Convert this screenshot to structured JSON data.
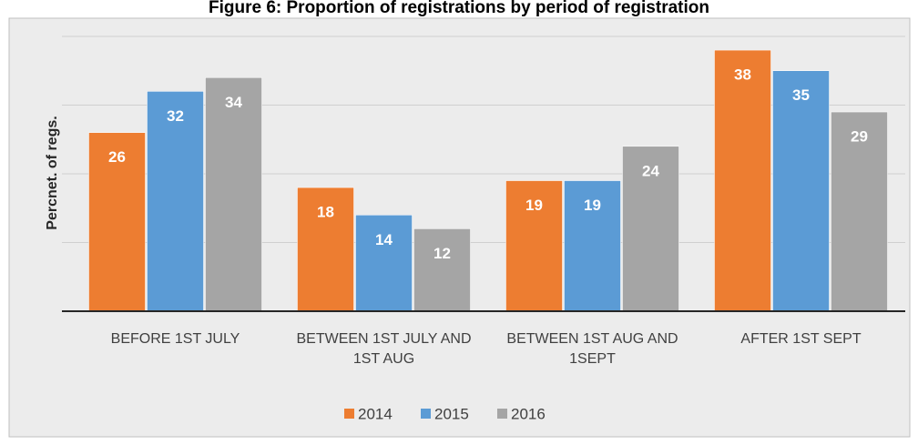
{
  "chart_data": {
    "type": "bar",
    "title": "Figure 6: Proportion of registrations by period of registration",
    "y_label": "Percnet. of regs.",
    "categories": [
      "BEFORE 1ST JULY",
      "BETWEEN 1ST JULY AND 1ST AUG",
      "BETWEEN 1ST AUG AND 1SEPT",
      "AFTER 1ST SEPT"
    ],
    "series": [
      {
        "name": "2014",
        "color": "#ed7d31",
        "values": [
          26,
          18,
          19,
          38
        ]
      },
      {
        "name": "2015",
        "color": "#5b9bd5",
        "values": [
          32,
          14,
          19,
          35
        ]
      },
      {
        "name": "2016",
        "color": "#a5a5a5",
        "values": [
          34,
          12,
          24,
          29
        ]
      }
    ],
    "ylim": [
      0,
      40
    ],
    "yticks": [
      0,
      10,
      20,
      30,
      40
    ],
    "grid": true
  }
}
